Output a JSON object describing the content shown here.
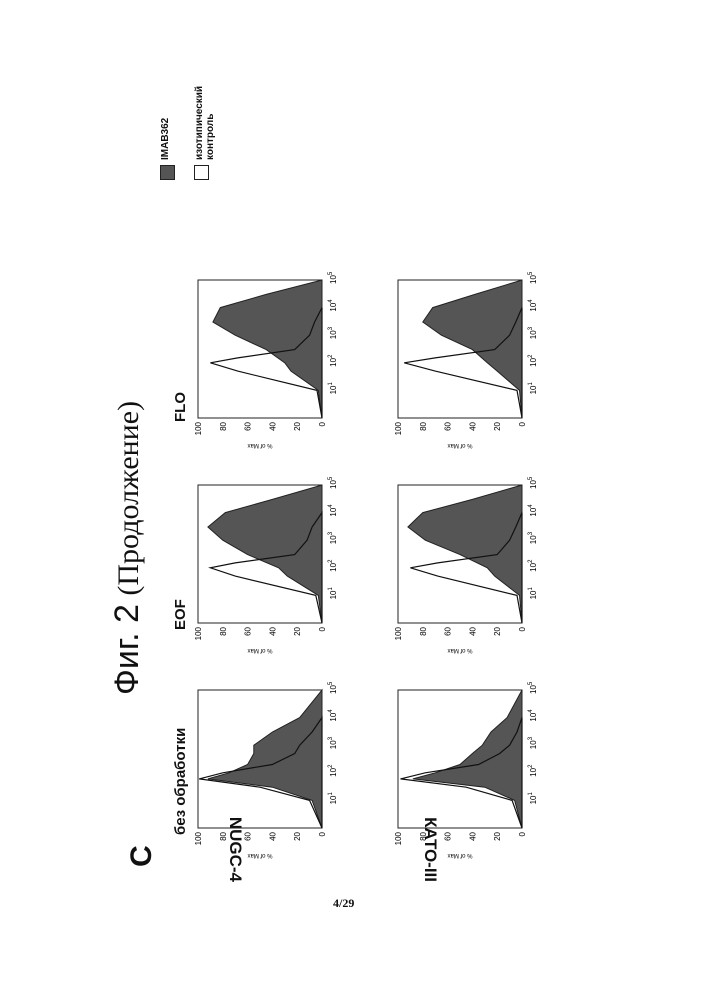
{
  "figure_title": "Фиг. 2",
  "figure_subtitle": "(Продолжение)",
  "panel_letter": "C",
  "page_number": "4/29",
  "legend": {
    "filled_label": "IMAB362",
    "open_label": "изотипический\nконтроль",
    "filled_color": "#555555",
    "open_color": "#ffffff"
  },
  "chart_data": [
    {
      "type": "area",
      "row": "NUGC-4",
      "column": "без обработки",
      "ylabel": "% of Max",
      "xscale": "log",
      "xlim": [
        1,
        100000
      ],
      "ylim": [
        0,
        100
      ],
      "yticks": [
        0,
        20,
        40,
        60,
        80,
        100
      ],
      "series": [
        {
          "name": "IMAB362",
          "x": [
            1,
            10,
            30,
            60,
            100,
            200,
            500,
            1000,
            3000,
            10000,
            100000
          ],
          "values": [
            0,
            8,
            40,
            92,
            75,
            60,
            55,
            55,
            40,
            18,
            0
          ]
        },
        {
          "name": "изотипический контроль",
          "x": [
            1,
            10,
            30,
            60,
            100,
            200,
            500,
            1000,
            3000,
            10000
          ],
          "values": [
            0,
            10,
            50,
            99,
            80,
            40,
            22,
            18,
            8,
            0
          ]
        }
      ]
    },
    {
      "type": "area",
      "row": "NUGC-4",
      "column": "EOF",
      "ylabel": "% of Max",
      "xscale": "log",
      "xlim": [
        1,
        100000
      ],
      "ylim": [
        0,
        100
      ],
      "yticks": [
        0,
        20,
        40,
        60,
        80,
        100
      ],
      "series": [
        {
          "name": "IMAB362",
          "x": [
            1,
            10,
            50,
            100,
            300,
            1000,
            3000,
            10000,
            30000,
            100000
          ],
          "values": [
            0,
            3,
            28,
            35,
            60,
            80,
            92,
            78,
            40,
            0
          ]
        },
        {
          "name": "изотипический контроль",
          "x": [
            1,
            10,
            50,
            100,
            150,
            300,
            1000,
            3000,
            10000
          ],
          "values": [
            0,
            5,
            70,
            90,
            70,
            22,
            12,
            8,
            0
          ]
        }
      ]
    },
    {
      "type": "area",
      "row": "NUGC-4",
      "column": "FLO",
      "ylabel": "% of Max",
      "xscale": "log",
      "xlim": [
        1,
        100000
      ],
      "ylim": [
        0,
        100
      ],
      "yticks": [
        0,
        20,
        40,
        60,
        80,
        100
      ],
      "series": [
        {
          "name": "IMAB362",
          "x": [
            1,
            10,
            50,
            100,
            300,
            1000,
            3000,
            10000,
            30000,
            100000
          ],
          "values": [
            0,
            3,
            25,
            30,
            45,
            70,
            88,
            82,
            45,
            0
          ]
        },
        {
          "name": "изотипический контроль",
          "x": [
            1,
            10,
            50,
            100,
            150,
            300,
            1000,
            3000,
            10000
          ],
          "values": [
            0,
            4,
            68,
            90,
            68,
            22,
            10,
            6,
            0
          ]
        }
      ]
    },
    {
      "type": "area",
      "row": "КАТО-III",
      "column": "без обработки",
      "ylabel": "% of Max",
      "xscale": "log",
      "xlim": [
        1,
        100000
      ],
      "ylim": [
        0,
        100
      ],
      "yticks": [
        0,
        20,
        40,
        60,
        80,
        100
      ],
      "series": [
        {
          "name": "IMAB362",
          "x": [
            1,
            10,
            30,
            60,
            100,
            200,
            500,
            1000,
            3000,
            10000,
            100000
          ],
          "values": [
            0,
            6,
            30,
            88,
            70,
            50,
            40,
            32,
            25,
            12,
            0
          ]
        },
        {
          "name": "изотипический контроль",
          "x": [
            1,
            10,
            30,
            60,
            100,
            200,
            500,
            1000,
            3000,
            10000
          ],
          "values": [
            0,
            8,
            45,
            98,
            78,
            35,
            18,
            10,
            4,
            0
          ]
        }
      ]
    },
    {
      "type": "area",
      "row": "КАТО-III",
      "column": "EOF",
      "ylabel": "% of Max",
      "xscale": "log",
      "xlim": [
        1,
        100000
      ],
      "ylim": [
        0,
        100
      ],
      "yticks": [
        0,
        20,
        40,
        60,
        80,
        100
      ],
      "series": [
        {
          "name": "IMAB362",
          "x": [
            1,
            10,
            50,
            100,
            300,
            1000,
            3000,
            10000,
            30000,
            100000
          ],
          "values": [
            0,
            2,
            22,
            28,
            50,
            78,
            92,
            80,
            40,
            0
          ]
        },
        {
          "name": "изотипический контроль",
          "x": [
            1,
            10,
            50,
            100,
            150,
            300,
            1000,
            3000,
            10000
          ],
          "values": [
            0,
            4,
            68,
            90,
            68,
            20,
            10,
            5,
            0
          ]
        }
      ]
    },
    {
      "type": "area",
      "row": "КАТО-III",
      "column": "FLO",
      "ylabel": "% of Max",
      "xscale": "log",
      "xlim": [
        1,
        100000
      ],
      "ylim": [
        0,
        100
      ],
      "yticks": [
        0,
        20,
        40,
        60,
        80,
        100
      ],
      "series": [
        {
          "name": "IMAB362",
          "x": [
            1,
            10,
            50,
            100,
            300,
            1000,
            3000,
            10000,
            30000,
            100000
          ],
          "values": [
            0,
            2,
            20,
            28,
            40,
            65,
            80,
            72,
            38,
            0
          ]
        },
        {
          "name": "изотипический контроль",
          "x": [
            1,
            10,
            50,
            100,
            150,
            300,
            1000,
            3000,
            10000
          ],
          "values": [
            0,
            4,
            70,
            95,
            70,
            22,
            10,
            5,
            0
          ]
        }
      ]
    }
  ]
}
